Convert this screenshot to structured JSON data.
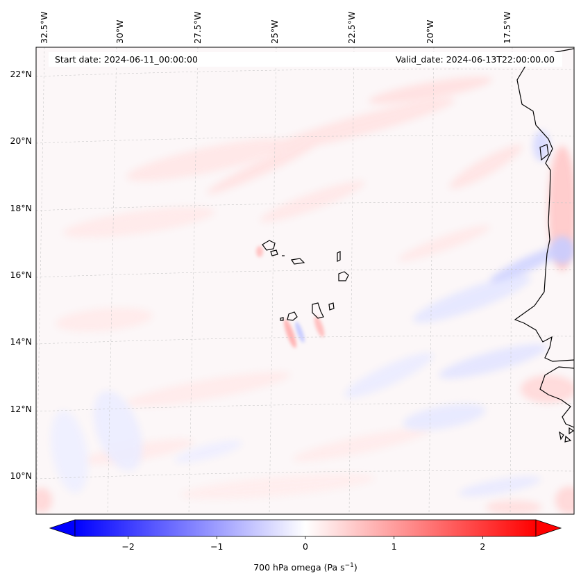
{
  "map": {
    "start_date": "Start date: 2024-06-11_00:00:00",
    "valid_date": "Valid_date: 2024-06-13T22:00:00.00",
    "lon_labels": [
      "32.5°W",
      "30°W",
      "27.5°W",
      "25°W",
      "22.5°W",
      "20°W",
      "17.5°W"
    ],
    "lat_labels": [
      "22°N",
      "20°N",
      "18°N",
      "16°N",
      "14°N",
      "12°N",
      "10°N"
    ],
    "variable": "700 hPa omega"
  },
  "colorbar": {
    "label": "700 hPa omega (Pa s",
    "label_exponent": "−1",
    "label_close": ")",
    "range": [
      -2.6,
      2.6
    ],
    "ticks": [
      -2,
      -1,
      0,
      1,
      2
    ],
    "tick_labels": [
      "−2",
      "−1",
      "0",
      "1",
      "2"
    ],
    "colormap": "bwr",
    "extend": "both"
  },
  "colors": {
    "negative": "#0000ff",
    "neutral": "#ffffff",
    "positive": "#ff0000",
    "coastline": "#000000",
    "gridline": "#c8c8c8"
  }
}
